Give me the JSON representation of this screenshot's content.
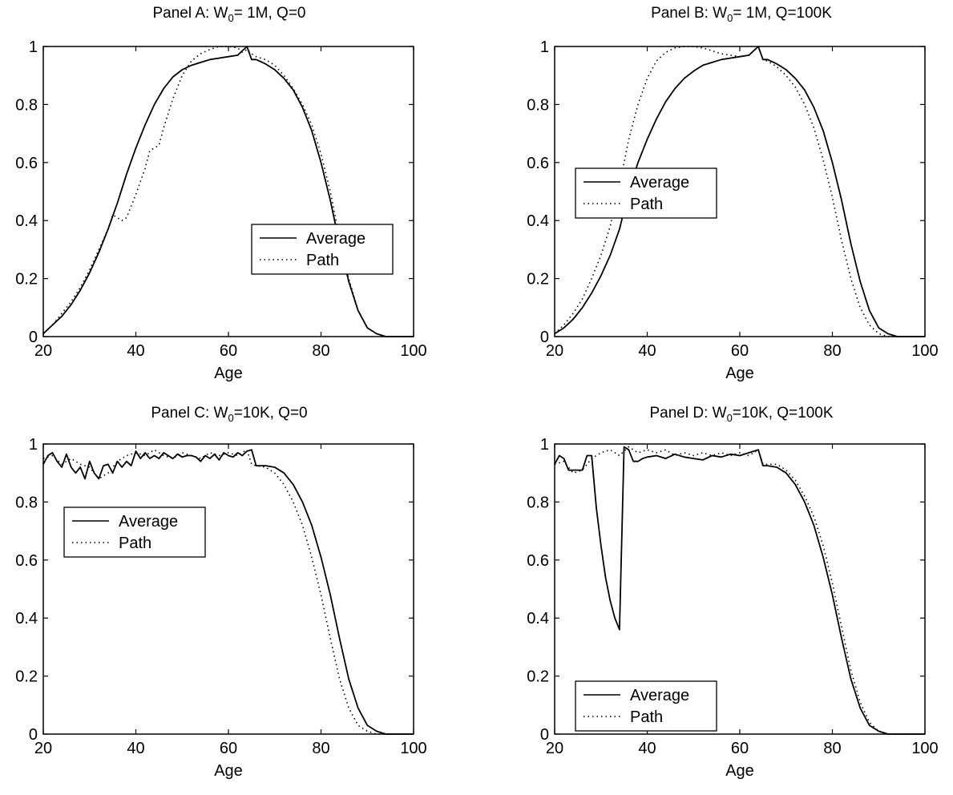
{
  "chart_data": [
    {
      "type": "line",
      "title_prefix": "Panel A: W",
      "title_sub": "0",
      "title_suffix": "= 1M, Q=0",
      "xlabel": "Age",
      "ylabel": "",
      "xlim": [
        20,
        100
      ],
      "ylim": [
        0,
        1
      ],
      "xticks": [
        "20",
        "40",
        "60",
        "80",
        "100"
      ],
      "yticks": [
        "0",
        "0.2",
        "0.4",
        "0.6",
        "0.8",
        "1"
      ],
      "grid": false,
      "legend": "lower-right",
      "series": [
        {
          "name": "Average",
          "style": "solid",
          "x": [
            20,
            22,
            24,
            26,
            28,
            30,
            32,
            34,
            36,
            38,
            40,
            42,
            44,
            46,
            48,
            50,
            52,
            54,
            56,
            58,
            60,
            62,
            63,
            64,
            65,
            66,
            68,
            70,
            72,
            74,
            76,
            78,
            80,
            82,
            84,
            86,
            88,
            90,
            92,
            94,
            96,
            98,
            100
          ],
          "y": [
            0.01,
            0.04,
            0.07,
            0.11,
            0.16,
            0.22,
            0.29,
            0.37,
            0.46,
            0.56,
            0.65,
            0.73,
            0.8,
            0.855,
            0.895,
            0.92,
            0.935,
            0.945,
            0.955,
            0.96,
            0.965,
            0.97,
            0.985,
            1.0,
            0.955,
            0.955,
            0.94,
            0.92,
            0.89,
            0.85,
            0.79,
            0.71,
            0.6,
            0.47,
            0.32,
            0.19,
            0.09,
            0.03,
            0.01,
            0,
            0,
            0,
            0
          ]
        },
        {
          "name": "Path",
          "style": "dotted",
          "x": [
            20,
            22,
            24,
            26,
            28,
            30,
            32,
            34,
            35,
            36,
            37,
            38,
            40,
            42,
            43,
            44,
            45,
            46,
            48,
            50,
            52,
            54,
            56,
            58,
            60,
            62,
            63,
            64,
            65,
            66,
            68,
            70,
            72,
            74,
            76,
            78,
            80,
            82,
            84,
            86,
            88,
            90,
            92,
            94,
            96,
            98,
            100
          ],
          "y": [
            0.01,
            0.04,
            0.08,
            0.12,
            0.17,
            0.23,
            0.3,
            0.37,
            0.42,
            0.41,
            0.4,
            0.41,
            0.49,
            0.58,
            0.64,
            0.65,
            0.66,
            0.72,
            0.82,
            0.9,
            0.95,
            0.975,
            0.99,
            1.0,
            1.0,
            0.995,
            0.98,
            0.99,
            0.975,
            0.965,
            0.955,
            0.935,
            0.9,
            0.855,
            0.8,
            0.73,
            0.63,
            0.5,
            0.34,
            0.2,
            0.09,
            0.03,
            0.01,
            0,
            0,
            0,
            0
          ]
        }
      ]
    },
    {
      "type": "line",
      "title_prefix": "Panel B: W",
      "title_sub": "0",
      "title_suffix": "= 1M, Q=100K",
      "xlabel": "Age",
      "ylabel": "",
      "xlim": [
        20,
        100
      ],
      "ylim": [
        0,
        1
      ],
      "xticks": [
        "20",
        "40",
        "60",
        "80",
        "100"
      ],
      "yticks": [
        "0",
        "0.2",
        "0.4",
        "0.6",
        "0.8",
        "1"
      ],
      "grid": false,
      "legend": "center-left",
      "series": [
        {
          "name": "Average",
          "style": "solid",
          "x": [
            20,
            22,
            24,
            26,
            28,
            30,
            32,
            34,
            36,
            38,
            40,
            42,
            44,
            46,
            48,
            50,
            52,
            54,
            56,
            58,
            60,
            62,
            63,
            64,
            65,
            66,
            68,
            70,
            72,
            74,
            76,
            78,
            80,
            82,
            84,
            86,
            88,
            90,
            92,
            94,
            96,
            98,
            100
          ],
          "y": [
            0.01,
            0.03,
            0.06,
            0.1,
            0.15,
            0.21,
            0.28,
            0.37,
            0.5,
            0.6,
            0.68,
            0.75,
            0.81,
            0.855,
            0.89,
            0.915,
            0.935,
            0.945,
            0.955,
            0.96,
            0.965,
            0.97,
            0.985,
            1.0,
            0.955,
            0.955,
            0.94,
            0.92,
            0.89,
            0.85,
            0.79,
            0.71,
            0.6,
            0.47,
            0.32,
            0.19,
            0.09,
            0.03,
            0.01,
            0,
            0,
            0,
            0
          ]
        },
        {
          "name": "Path",
          "style": "dotted",
          "x": [
            20,
            22,
            24,
            26,
            28,
            30,
            32,
            34,
            36,
            38,
            40,
            42,
            44,
            46,
            48,
            50,
            52,
            54,
            56,
            58,
            60,
            62,
            63,
            64,
            65,
            66,
            68,
            70,
            72,
            74,
            76,
            78,
            80,
            82,
            84,
            86,
            88,
            90,
            92,
            94,
            96,
            98,
            100
          ],
          "y": [
            0.01,
            0.04,
            0.08,
            0.13,
            0.2,
            0.28,
            0.38,
            0.52,
            0.68,
            0.8,
            0.89,
            0.95,
            0.98,
            0.995,
            1.0,
            1.0,
            0.995,
            0.985,
            0.975,
            0.97,
            0.965,
            0.97,
            0.985,
            1.0,
            0.955,
            0.95,
            0.93,
            0.9,
            0.86,
            0.8,
            0.72,
            0.61,
            0.48,
            0.33,
            0.2,
            0.1,
            0.04,
            0.01,
            0,
            0,
            0,
            0,
            0
          ]
        }
      ]
    },
    {
      "type": "line",
      "title_prefix": "Panel C: W",
      "title_sub": "0",
      "title_suffix": "=10K, Q=0",
      "xlabel": "Age",
      "ylabel": "",
      "xlim": [
        20,
        100
      ],
      "ylim": [
        0,
        1
      ],
      "xticks": [
        "20",
        "40",
        "60",
        "80",
        "100"
      ],
      "yticks": [
        "0",
        "0.2",
        "0.4",
        "0.6",
        "0.8",
        "1"
      ],
      "grid": false,
      "legend": "upper-left",
      "series": [
        {
          "name": "Average",
          "style": "solid",
          "x": [
            20,
            21,
            22,
            23,
            24,
            25,
            26,
            27,
            28,
            29,
            30,
            31,
            32,
            33,
            34,
            35,
            36,
            37,
            38,
            39,
            40,
            41,
            42,
            43,
            44,
            45,
            46,
            47,
            48,
            49,
            50,
            51,
            52,
            53,
            54,
            55,
            56,
            57,
            58,
            59,
            60,
            61,
            62,
            63,
            64,
            65,
            66,
            68,
            70,
            72,
            74,
            76,
            78,
            80,
            82,
            84,
            86,
            88,
            90,
            92,
            94,
            96,
            98,
            100
          ],
          "y": [
            0.93,
            0.96,
            0.97,
            0.94,
            0.92,
            0.965,
            0.92,
            0.9,
            0.92,
            0.88,
            0.94,
            0.9,
            0.88,
            0.925,
            0.93,
            0.9,
            0.94,
            0.92,
            0.94,
            0.925,
            0.975,
            0.95,
            0.97,
            0.95,
            0.96,
            0.95,
            0.97,
            0.96,
            0.95,
            0.965,
            0.955,
            0.96,
            0.96,
            0.955,
            0.94,
            0.96,
            0.95,
            0.965,
            0.945,
            0.97,
            0.96,
            0.955,
            0.97,
            0.96,
            0.975,
            0.98,
            0.925,
            0.925,
            0.92,
            0.9,
            0.86,
            0.8,
            0.72,
            0.61,
            0.48,
            0.33,
            0.19,
            0.09,
            0.03,
            0.01,
            0,
            0,
            0,
            0
          ]
        },
        {
          "name": "Path",
          "style": "dotted",
          "x": [
            20,
            22,
            24,
            26,
            28,
            30,
            32,
            34,
            36,
            38,
            40,
            42,
            44,
            46,
            48,
            50,
            52,
            54,
            56,
            58,
            60,
            62,
            64,
            65,
            66,
            68,
            70,
            72,
            74,
            76,
            78,
            80,
            82,
            84,
            86,
            88,
            90,
            92,
            94,
            96,
            98,
            100
          ],
          "y": [
            0.95,
            0.96,
            0.93,
            0.95,
            0.93,
            0.92,
            0.88,
            0.9,
            0.94,
            0.96,
            0.97,
            0.96,
            0.98,
            0.96,
            0.95,
            0.97,
            0.96,
            0.95,
            0.97,
            0.96,
            0.97,
            0.96,
            0.98,
            0.93,
            0.925,
            0.92,
            0.9,
            0.86,
            0.8,
            0.72,
            0.61,
            0.48,
            0.33,
            0.19,
            0.09,
            0.03,
            0.01,
            0,
            0,
            0,
            0,
            0
          ]
        }
      ]
    },
    {
      "type": "line",
      "title_prefix": "Panel D: W",
      "title_sub": "0",
      "title_suffix": "=10K, Q=100K",
      "xlabel": "Age",
      "ylabel": "",
      "xlim": [
        20,
        100
      ],
      "ylim": [
        0,
        1
      ],
      "xticks": [
        "20",
        "40",
        "60",
        "80",
        "100"
      ],
      "yticks": [
        "0",
        "0.2",
        "0.4",
        "0.6",
        "0.8",
        "1"
      ],
      "grid": false,
      "legend": "lower-left",
      "series": [
        {
          "name": "Average",
          "style": "solid",
          "x": [
            20,
            21,
            22,
            23,
            24,
            25,
            26,
            27,
            28,
            29,
            30,
            31,
            32,
            33,
            34,
            35,
            36,
            37,
            38,
            39,
            40,
            42,
            44,
            46,
            48,
            50,
            52,
            54,
            56,
            58,
            60,
            62,
            64,
            65,
            66,
            68,
            70,
            72,
            74,
            76,
            78,
            80,
            82,
            84,
            86,
            88,
            90,
            92,
            94,
            96,
            98,
            100
          ],
          "y": [
            0.93,
            0.96,
            0.95,
            0.91,
            0.91,
            0.91,
            0.91,
            0.96,
            0.96,
            0.78,
            0.65,
            0.54,
            0.46,
            0.4,
            0.36,
            0.99,
            0.98,
            0.94,
            0.94,
            0.95,
            0.955,
            0.96,
            0.95,
            0.965,
            0.955,
            0.95,
            0.945,
            0.96,
            0.955,
            0.965,
            0.96,
            0.97,
            0.98,
            0.925,
            0.925,
            0.92,
            0.9,
            0.86,
            0.8,
            0.72,
            0.61,
            0.48,
            0.33,
            0.19,
            0.09,
            0.03,
            0.01,
            0,
            0,
            0,
            0,
            0
          ]
        },
        {
          "name": "Path",
          "style": "dotted",
          "x": [
            20,
            22,
            24,
            26,
            28,
            30,
            32,
            34,
            36,
            38,
            40,
            42,
            44,
            46,
            48,
            50,
            52,
            54,
            56,
            58,
            60,
            62,
            64,
            65,
            66,
            68,
            70,
            72,
            74,
            76,
            78,
            80,
            82,
            84,
            86,
            88,
            90,
            92,
            94,
            96,
            98,
            100
          ],
          "y": [
            0.93,
            0.94,
            0.9,
            0.91,
            0.95,
            0.97,
            0.98,
            0.96,
            0.99,
            0.97,
            0.98,
            0.97,
            0.98,
            0.96,
            0.97,
            0.96,
            0.97,
            0.96,
            0.97,
            0.96,
            0.97,
            0.96,
            0.98,
            0.93,
            0.93,
            0.93,
            0.91,
            0.875,
            0.82,
            0.75,
            0.65,
            0.52,
            0.37,
            0.22,
            0.11,
            0.04,
            0.01,
            0,
            0,
            0,
            0,
            0
          ]
        }
      ]
    }
  ]
}
